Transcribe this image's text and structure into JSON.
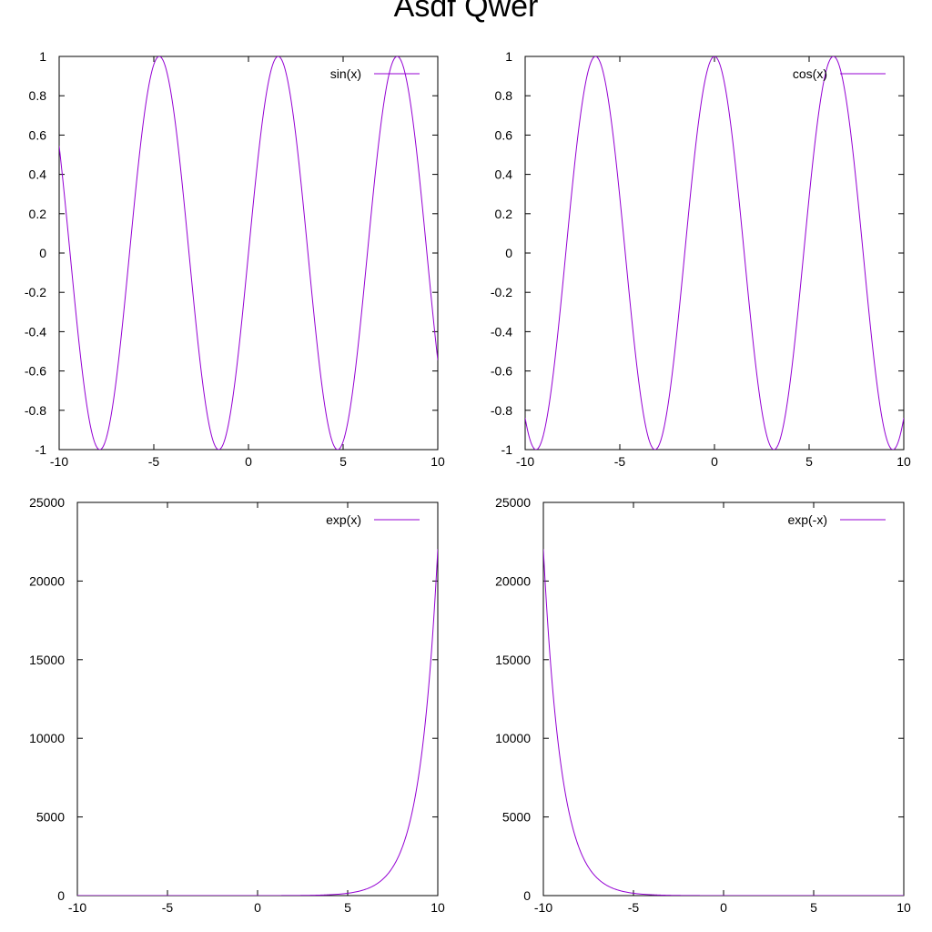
{
  "title": "Asdf Qwer",
  "line_color": "#9400d3",
  "chart_data": [
    {
      "type": "line",
      "legend_location": "top-right",
      "series": [
        {
          "name": "sin(x)",
          "function": "sin"
        }
      ],
      "xlim": [
        -10,
        10
      ],
      "ylim": [
        -1,
        1
      ],
      "xticks": [
        -10,
        -5,
        0,
        5,
        10
      ],
      "yticks": [
        -1,
        -0.8,
        -0.6,
        -0.4,
        -0.2,
        0,
        0.2,
        0.4,
        0.6,
        0.8,
        1
      ],
      "xtick_labels": [
        "-10",
        "-5",
        "0",
        "5",
        "10"
      ],
      "ytick_labels": [
        "-1",
        "-0.8",
        "-0.6",
        "-0.4",
        "-0.2",
        "0",
        "0.2",
        "0.4",
        "0.6",
        "0.8",
        "1"
      ],
      "grid": false
    },
    {
      "type": "line",
      "legend_location": "top-right",
      "series": [
        {
          "name": "cos(x)",
          "function": "cos"
        }
      ],
      "xlim": [
        -10,
        10
      ],
      "ylim": [
        -1,
        1
      ],
      "xticks": [
        -10,
        -5,
        0,
        5,
        10
      ],
      "yticks": [
        -1,
        -0.8,
        -0.6,
        -0.4,
        -0.2,
        0,
        0.2,
        0.4,
        0.6,
        0.8,
        1
      ],
      "xtick_labels": [
        "-10",
        "-5",
        "0",
        "5",
        "10"
      ],
      "ytick_labels": [
        "-1",
        "-0.8",
        "-0.6",
        "-0.4",
        "-0.2",
        "0",
        "0.2",
        "0.4",
        "0.6",
        "0.8",
        "1"
      ],
      "grid": false
    },
    {
      "type": "line",
      "legend_location": "top-right",
      "series": [
        {
          "name": "exp(x)",
          "function": "exp"
        }
      ],
      "xlim": [
        -10,
        10
      ],
      "ylim": [
        0,
        25000
      ],
      "xticks": [
        -10,
        -5,
        0,
        5,
        10
      ],
      "yticks": [
        0,
        5000,
        10000,
        15000,
        20000,
        25000
      ],
      "xtick_labels": [
        "-10",
        "-5",
        "0",
        "5",
        "10"
      ],
      "ytick_labels": [
        "0",
        "5000",
        "10000",
        "15000",
        "20000",
        "25000"
      ],
      "grid": false
    },
    {
      "type": "line",
      "legend_location": "top-right",
      "series": [
        {
          "name": "exp(-x)",
          "function": "expneg"
        }
      ],
      "xlim": [
        -10,
        10
      ],
      "ylim": [
        0,
        25000
      ],
      "xticks": [
        -10,
        -5,
        0,
        5,
        10
      ],
      "yticks": [
        0,
        5000,
        10000,
        15000,
        20000,
        25000
      ],
      "xtick_labels": [
        "-10",
        "-5",
        "0",
        "5",
        "10"
      ],
      "ytick_labels": [
        "0",
        "5000",
        "10000",
        "15000",
        "20000",
        "25000"
      ],
      "grid": false
    }
  ]
}
